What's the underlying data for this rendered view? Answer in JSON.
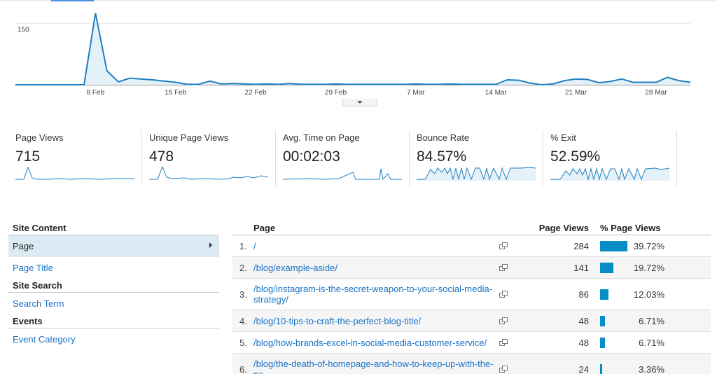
{
  "chart": {
    "y_tick": "150",
    "x_ticks": [
      "8 Feb",
      "15 Feb",
      "22 Feb",
      "29 Feb",
      "7 Mar",
      "14 Mar",
      "21 Mar",
      "28 Mar"
    ]
  },
  "chart_data": {
    "type": "area",
    "ylabel": "",
    "xlabel": "",
    "yticks": [
      150
    ],
    "ylim": [
      0,
      190
    ],
    "x": [
      "1 Feb",
      "2 Feb",
      "3 Feb",
      "4 Feb",
      "5 Feb",
      "6 Feb",
      "7 Feb",
      "8 Feb",
      "9 Feb",
      "10 Feb",
      "11 Feb",
      "12 Feb",
      "13 Feb",
      "14 Feb",
      "15 Feb",
      "16 Feb",
      "17 Feb",
      "18 Feb",
      "19 Feb",
      "20 Feb",
      "21 Feb",
      "22 Feb",
      "23 Feb",
      "24 Feb",
      "25 Feb",
      "26 Feb",
      "27 Feb",
      "28 Feb",
      "29 Feb",
      "1 Mar",
      "2 Mar",
      "3 Mar",
      "4 Mar",
      "5 Mar",
      "6 Mar",
      "7 Mar",
      "8 Mar",
      "9 Mar",
      "10 Mar",
      "11 Mar",
      "12 Mar",
      "13 Mar",
      "14 Mar",
      "15 Mar",
      "16 Mar",
      "17 Mar",
      "18 Mar",
      "19 Mar",
      "20 Mar",
      "21 Mar",
      "22 Mar",
      "23 Mar",
      "24 Mar",
      "25 Mar",
      "26 Mar",
      "27 Mar",
      "28 Mar",
      "29 Mar",
      "30 Mar",
      "31 Mar"
    ],
    "series": [
      {
        "values": [
          0,
          0,
          0,
          0,
          0,
          0,
          0,
          175,
          34,
          7,
          16,
          14,
          12,
          9,
          6,
          1,
          1,
          9,
          2,
          3,
          2,
          1,
          2,
          1,
          3,
          1,
          1,
          1,
          2,
          1,
          1,
          1,
          1,
          1,
          1,
          2,
          1,
          1,
          2,
          1,
          1,
          1,
          1,
          12,
          11,
          4,
          0,
          2,
          10,
          14,
          13,
          5,
          8,
          14,
          6,
          6,
          6,
          18,
          10,
          6
        ]
      }
    ]
  },
  "metrics": [
    {
      "label": "Page Views",
      "value": "715"
    },
    {
      "label": "Unique Page Views",
      "value": "478"
    },
    {
      "label": "Avg. Time on Page",
      "value": "00:02:03"
    },
    {
      "label": "Bounce Rate",
      "value": "84.57%"
    },
    {
      "label": "% Exit",
      "value": "52.59%"
    }
  ],
  "nav": {
    "site_content": {
      "header": "Site Content",
      "items": [
        "Page",
        "Page Title"
      ]
    },
    "site_search": {
      "header": "Site Search",
      "items": [
        "Search Term"
      ]
    },
    "events": {
      "header": "Events",
      "items": [
        "Event Category"
      ]
    }
  },
  "table": {
    "headers": {
      "page": "Page",
      "views": "Page Views",
      "pct": "% Page Views"
    },
    "rows": [
      {
        "num": "1.",
        "page": "/",
        "views": "284",
        "pct": "39.72%",
        "share": 0.3972
      },
      {
        "num": "2.",
        "page": "/blog/example-aside/",
        "views": "141",
        "pct": "19.72%",
        "share": 0.1972
      },
      {
        "num": "3.",
        "page": "/blog/instagram-is-the-secret-weapon-to-your-social-media-strategy/",
        "views": "86",
        "pct": "12.03%",
        "share": 0.1203
      },
      {
        "num": "4.",
        "page": "/blog/10-tips-to-craft-the-perfect-blog-title/",
        "views": "48",
        "pct": "6.71%",
        "share": 0.0671
      },
      {
        "num": "5.",
        "page": "/blog/how-brands-excel-in-social-media-customer-service/",
        "views": "48",
        "pct": "6.71%",
        "share": 0.0671
      },
      {
        "num": "6.",
        "page": "/blog/the-death-of-homepage-and-how-to-keep-up-with-the-ne",
        "views": "24",
        "pct": "3.36%",
        "share": 0.0336
      }
    ]
  },
  "colors": {
    "accent": "#058dc7",
    "line": "#1f7fc0",
    "fill": "#e4f1f9",
    "link": "#1a73c8"
  }
}
